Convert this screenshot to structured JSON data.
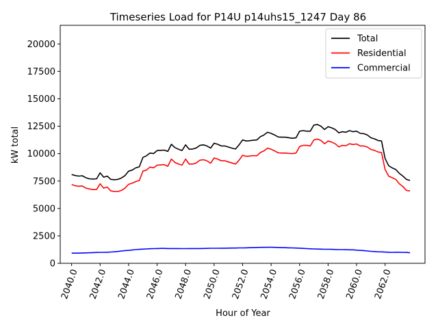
{
  "chart_data": {
    "type": "line",
    "title": "Timeseries Load for P14U p14uhs15_1247  Day 86",
    "xlabel": "Hour of Year",
    "ylabel": "kW total",
    "xlim": [
      2039.2,
      2064.8
    ],
    "ylim": [
      0,
      21700
    ],
    "x_ticks": [
      2040,
      2042,
      2044,
      2046,
      2048,
      2050,
      2052,
      2054,
      2056,
      2058,
      2060,
      2062
    ],
    "x_tick_labels": [
      "2040.0",
      "2042.0",
      "2044.0",
      "2046.0",
      "2048.0",
      "2050.0",
      "2052.0",
      "2054.0",
      "2056.0",
      "2058.0",
      "2060.0",
      "2062.0"
    ],
    "y_ticks": [
      0,
      2500,
      5000,
      7500,
      10000,
      12500,
      15000,
      17500,
      20000
    ],
    "y_tick_labels": [
      "0",
      "2500",
      "5000",
      "7500",
      "10000",
      "12500",
      "15000",
      "17500",
      "20000"
    ],
    "legend_position": "top-right",
    "grid": false,
    "x": [
      2040.0,
      2040.25,
      2040.5,
      2040.75,
      2041.0,
      2041.25,
      2041.5,
      2041.75,
      2042.0,
      2042.25,
      2042.5,
      2042.75,
      2043.0,
      2043.25,
      2043.5,
      2043.75,
      2044.0,
      2044.25,
      2044.5,
      2044.75,
      2045.0,
      2045.25,
      2045.5,
      2045.75,
      2046.0,
      2046.25,
      2046.5,
      2046.75,
      2047.0,
      2047.25,
      2047.5,
      2047.75,
      2048.0,
      2048.25,
      2048.5,
      2048.75,
      2049.0,
      2049.25,
      2049.5,
      2049.75,
      2050.0,
      2050.25,
      2050.5,
      2050.75,
      2051.0,
      2051.25,
      2051.5,
      2051.75,
      2052.0,
      2052.25,
      2052.5,
      2052.75,
      2053.0,
      2053.25,
      2053.5,
      2053.75,
      2054.0,
      2054.25,
      2054.5,
      2054.75,
      2055.0,
      2055.25,
      2055.5,
      2055.75,
      2056.0,
      2056.25,
      2056.5,
      2056.75,
      2057.0,
      2057.25,
      2057.5,
      2057.75,
      2058.0,
      2058.25,
      2058.5,
      2058.75,
      2059.0,
      2059.25,
      2059.5,
      2059.75,
      2060.0,
      2060.25,
      2060.5,
      2060.75,
      2061.0,
      2061.25,
      2061.5,
      2061.75,
      2062.0,
      2062.25,
      2062.5,
      2062.75,
      2063.0,
      2063.25,
      2063.5,
      2063.75
    ],
    "series": [
      {
        "name": "Total",
        "color": "#000000",
        "values": [
          8100,
          8000,
          7950,
          7980,
          7800,
          7700,
          7680,
          7700,
          8250,
          7850,
          7950,
          7650,
          7620,
          7650,
          7780,
          8000,
          8400,
          8500,
          8700,
          8800,
          9650,
          9800,
          10050,
          10000,
          10280,
          10300,
          10320,
          10200,
          10850,
          10550,
          10400,
          10280,
          10800,
          10400,
          10420,
          10520,
          10750,
          10800,
          10700,
          10500,
          10950,
          10850,
          10700,
          10700,
          10600,
          10500,
          10420,
          10800,
          11250,
          11150,
          11180,
          11220,
          11250,
          11550,
          11700,
          11950,
          11850,
          11700,
          11520,
          11500,
          11500,
          11450,
          11400,
          11450,
          12050,
          12100,
          12050,
          12050,
          12600,
          12650,
          12500,
          12200,
          12450,
          12350,
          12200,
          11900,
          12000,
          11950,
          12100,
          12000,
          12050,
          11850,
          11820,
          11700,
          11450,
          11350,
          11200,
          11150,
          9550,
          8900,
          8700,
          8550,
          8200,
          7950,
          7650,
          7550
        ]
      },
      {
        "name": "Residential",
        "color": "#ff0000",
        "values": [
          7180,
          7080,
          7020,
          7050,
          6850,
          6780,
          6720,
          6720,
          7250,
          6850,
          6950,
          6600,
          6550,
          6550,
          6650,
          6850,
          7200,
          7300,
          7450,
          7550,
          8400,
          8500,
          8780,
          8700,
          8950,
          8970,
          8990,
          8850,
          9500,
          9200,
          9050,
          8950,
          9500,
          9050,
          9050,
          9150,
          9400,
          9450,
          9350,
          9120,
          9600,
          9500,
          9350,
          9350,
          9250,
          9150,
          9050,
          9400,
          9850,
          9750,
          9780,
          9820,
          9800,
          10100,
          10250,
          10500,
          10400,
          10250,
          10070,
          10050,
          10050,
          10020,
          10000,
          10050,
          10650,
          10750,
          10750,
          10700,
          11250,
          11330,
          11200,
          10900,
          11150,
          11050,
          10900,
          10620,
          10750,
          10720,
          10900,
          10830,
          10880,
          10700,
          10700,
          10600,
          10380,
          10300,
          10150,
          10100,
          8550,
          7950,
          7800,
          7650,
          7250,
          7000,
          6650,
          6600
        ]
      },
      {
        "name": "Commercial",
        "color": "#0000ff",
        "values": [
          920,
          920,
          930,
          940,
          950,
          960,
          970,
          990,
          1000,
          1000,
          1010,
          1030,
          1050,
          1080,
          1120,
          1160,
          1180,
          1210,
          1250,
          1270,
          1290,
          1310,
          1330,
          1340,
          1350,
          1360,
          1360,
          1350,
          1350,
          1350,
          1350,
          1340,
          1340,
          1350,
          1350,
          1350,
          1350,
          1355,
          1360,
          1370,
          1370,
          1370,
          1375,
          1380,
          1385,
          1390,
          1390,
          1400,
          1400,
          1410,
          1420,
          1430,
          1440,
          1450,
          1450,
          1460,
          1460,
          1450,
          1440,
          1430,
          1420,
          1410,
          1400,
          1390,
          1380,
          1360,
          1340,
          1320,
          1310,
          1300,
          1290,
          1280,
          1280,
          1270,
          1260,
          1250,
          1250,
          1240,
          1230,
          1230,
          1200,
          1180,
          1160,
          1120,
          1090,
          1070,
          1050,
          1040,
          1020,
          1010,
          1000,
          1010,
          1010,
          1000,
          990,
          960
        ]
      }
    ]
  }
}
